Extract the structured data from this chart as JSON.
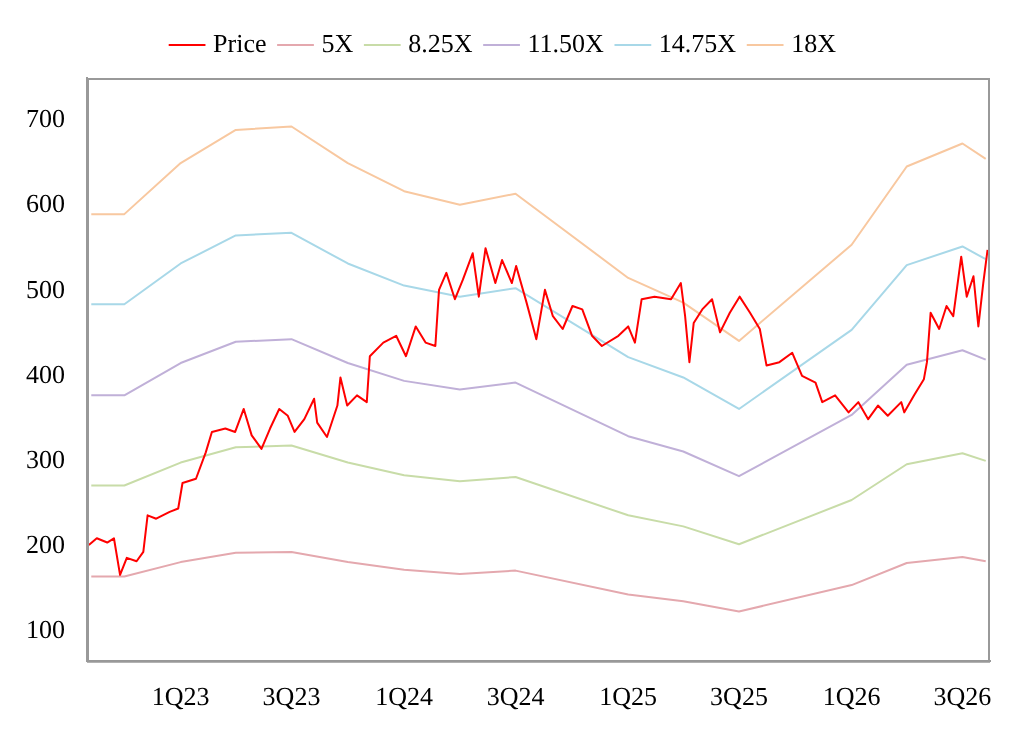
{
  "chart_data": {
    "type": "line",
    "legend": "top",
    "marker": "none",
    "line_style": "solid",
    "grid": false,
    "xlim": [
      "2022-08-01",
      "2026-08-15"
    ],
    "ylim": [
      65,
      750
    ],
    "xticks": [
      {
        "value": "2023-01-01",
        "label": "1Q23"
      },
      {
        "value": "2023-07-01",
        "label": "3Q23"
      },
      {
        "value": "2024-01-01",
        "label": "1Q24"
      },
      {
        "value": "2024-07-01",
        "label": "3Q24"
      },
      {
        "value": "2025-01-01",
        "label": "1Q25"
      },
      {
        "value": "2025-07-01",
        "label": "3Q25"
      },
      {
        "value": "2026-01-01",
        "label": "1Q26"
      },
      {
        "value": "2026-07-01",
        "label": "3Q26"
      }
    ],
    "yticks": [
      100,
      200,
      300,
      400,
      500,
      600,
      700
    ],
    "series": [
      {
        "name": "Price",
        "color": "#ff0000",
        "x": [
          "2022-08-04",
          "2022-08-17",
          "2022-09-03",
          "2022-09-14",
          "2022-09-24",
          "2022-10-05",
          "2022-10-21",
          "2022-11-01",
          "2022-11-08",
          "2022-11-22",
          "2022-12-14",
          "2022-12-28",
          "2023-01-04",
          "2023-01-26",
          "2023-02-11",
          "2023-02-21",
          "2023-03-15",
          "2023-03-31",
          "2023-04-14",
          "2023-04-27",
          "2023-05-13",
          "2023-05-27",
          "2023-06-11",
          "2023-06-25",
          "2023-07-06",
          "2023-07-22",
          "2023-08-07",
          "2023-08-12",
          "2023-08-28",
          "2023-09-14",
          "2023-09-19",
          "2023-09-30",
          "2023-10-16",
          "2023-11-01",
          "2023-11-06",
          "2023-11-28",
          "2023-12-19",
          "2024-01-04",
          "2024-01-20",
          "2024-02-05",
          "2024-02-21",
          "2024-02-27",
          "2024-03-10",
          "2024-03-24",
          "2024-04-06",
          "2024-04-22",
          "2024-05-02",
          "2024-05-13",
          "2024-05-29",
          "2024-06-09",
          "2024-06-25",
          "2024-07-02",
          "2024-07-19",
          "2024-08-04",
          "2024-08-18",
          "2024-08-31",
          "2024-09-16",
          "2024-10-02",
          "2024-10-18",
          "2024-11-03",
          "2024-11-19",
          "2024-12-16",
          "2025-01-01",
          "2025-01-12",
          "2025-01-23",
          "2025-02-13",
          "2025-03-12",
          "2025-03-28",
          "2025-04-04",
          "2025-04-11",
          "2025-04-18",
          "2025-05-02",
          "2025-05-18",
          "2025-05-31",
          "2025-06-16",
          "2025-07-02",
          "2025-07-19",
          "2025-08-04",
          "2025-08-15",
          "2025-09-05",
          "2025-09-26",
          "2025-10-12",
          "2025-11-03",
          "2025-11-14",
          "2025-12-05",
          "2025-12-27",
          "2026-01-12",
          "2026-01-28",
          "2026-02-13",
          "2026-03-01",
          "2026-03-23",
          "2026-03-28",
          "2026-04-13",
          "2026-04-29",
          "2026-05-04",
          "2026-05-10",
          "2026-05-24",
          "2026-06-05",
          "2026-06-16",
          "2026-06-29",
          "2026-07-08",
          "2026-07-19",
          "2026-07-27",
          "2026-08-04",
          "2026-08-11"
        ],
        "values": [
          201,
          209,
          204,
          209,
          166,
          186,
          182,
          193,
          236,
          232,
          240,
          244,
          274,
          279,
          310,
          334,
          338,
          334,
          361,
          330,
          314,
          338,
          361,
          353,
          334,
          349,
          373,
          345,
          328,
          365,
          398,
          365,
          377,
          369,
          423,
          439,
          447,
          423,
          458,
          439,
          435,
          501,
          521,
          490,
          513,
          544,
          493,
          550,
          509,
          536,
          509,
          529,
          486,
          443,
          501,
          470,
          455,
          482,
          478,
          447,
          435,
          447,
          458,
          439,
          490,
          493,
          490,
          509,
          470,
          416,
          462,
          478,
          490,
          451,
          474,
          493,
          474,
          455,
          412,
          416,
          427,
          400,
          392,
          369,
          377,
          357,
          369,
          349,
          365,
          353,
          369,
          357,
          377,
          396,
          416,
          474,
          455,
          482,
          470,
          540,
          493,
          517,
          458,
          509,
          548
        ]
      },
      {
        "name": "5X",
        "color": "#e4a8ae",
        "x": [
          "2022-08-08",
          "2022-10-01",
          "2023-01-01",
          "2023-04-01",
          "2023-07-01",
          "2023-10-01",
          "2024-01-01",
          "2024-04-01",
          "2024-07-01",
          "2025-01-01",
          "2025-04-01",
          "2025-07-01",
          "2026-01-01",
          "2026-04-01",
          "2026-07-01",
          "2026-08-08"
        ],
        "values": [
          164,
          164,
          181,
          192,
          193,
          181,
          172,
          167,
          171,
          143,
          135,
          123,
          154,
          180,
          187,
          182
        ]
      },
      {
        "name": "8.25X",
        "color": "#c8dca8",
        "x": [
          "2022-08-08",
          "2022-10-01",
          "2023-01-01",
          "2023-04-01",
          "2023-07-01",
          "2023-10-01",
          "2024-01-01",
          "2024-04-01",
          "2024-07-01",
          "2025-01-01",
          "2025-04-01",
          "2025-07-01",
          "2026-01-01",
          "2026-04-01",
          "2026-07-01",
          "2026-08-08"
        ],
        "values": [
          271,
          271,
          298,
          316,
          318,
          298,
          283,
          276,
          281,
          236,
          223,
          202,
          254,
          296,
          309,
          300
        ]
      },
      {
        "name": "11.50X",
        "color": "#c0b0d8",
        "x": [
          "2022-08-08",
          "2022-10-01",
          "2023-01-01",
          "2023-04-01",
          "2023-07-01",
          "2023-10-01",
          "2024-01-01",
          "2024-04-01",
          "2024-07-01",
          "2025-01-01",
          "2025-04-01",
          "2025-07-01",
          "2026-01-01",
          "2026-04-01",
          "2026-07-01",
          "2026-08-08"
        ],
        "values": [
          377,
          377,
          415,
          440,
          443,
          415,
          394,
          384,
          392,
          329,
          311,
          282,
          354,
          413,
          430,
          419
        ]
      },
      {
        "name": "14.75X",
        "color": "#a8d8e8",
        "x": [
          "2022-08-08",
          "2022-10-01",
          "2023-01-01",
          "2023-04-01",
          "2023-07-01",
          "2023-10-01",
          "2024-01-01",
          "2024-04-01",
          "2024-07-01",
          "2025-01-01",
          "2025-04-01",
          "2025-07-01",
          "2026-01-01",
          "2026-04-01",
          "2026-07-01",
          "2026-08-08"
        ],
        "values": [
          484,
          484,
          532,
          565,
          568,
          532,
          506,
          493,
          503,
          422,
          398,
          361,
          454,
          530,
          552,
          537
        ]
      },
      {
        "name": "18X",
        "color": "#f8c8a0",
        "x": [
          "2022-08-08",
          "2022-10-01",
          "2023-01-01",
          "2023-04-01",
          "2023-07-01",
          "2023-10-01",
          "2024-01-01",
          "2024-04-01",
          "2024-07-01",
          "2025-01-01",
          "2025-04-01",
          "2025-07-01",
          "2026-01-01",
          "2026-04-01",
          "2026-07-01",
          "2026-08-08"
        ],
        "values": [
          590,
          590,
          650,
          689,
          693,
          650,
          617,
          601,
          614,
          515,
          486,
          441,
          554,
          646,
          673,
          655
        ]
      }
    ]
  }
}
